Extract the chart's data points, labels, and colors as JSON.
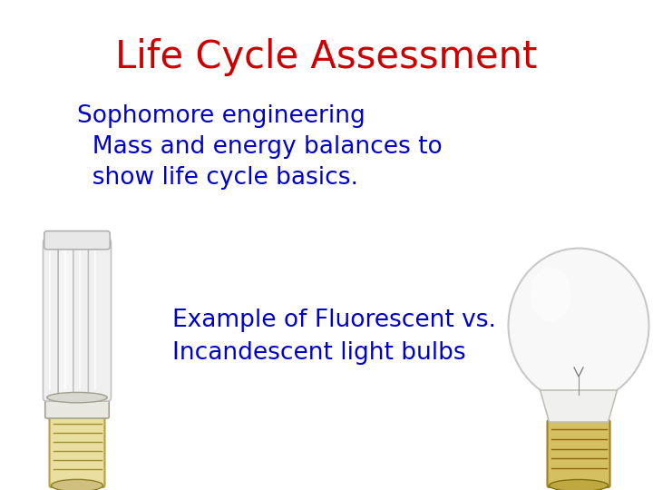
{
  "title": "Life Cycle Assessment",
  "title_color": "#cc0000",
  "title_fontsize": 30,
  "subtitle_lines": [
    "Sophomore engineering",
    "  Mass and energy balances to",
    "  show life cycle basics."
  ],
  "subtitle_color": "#0000cc",
  "subtitle_fontsize": 19,
  "body_lines": [
    "Example of Fluorescent vs.",
    "Incandescent light bulbs"
  ],
  "body_color": "#0000cc",
  "body_fontsize": 19,
  "background_color": "#ffffff",
  "fig_width": 7.2,
  "fig_height": 5.4,
  "dpi": 100
}
